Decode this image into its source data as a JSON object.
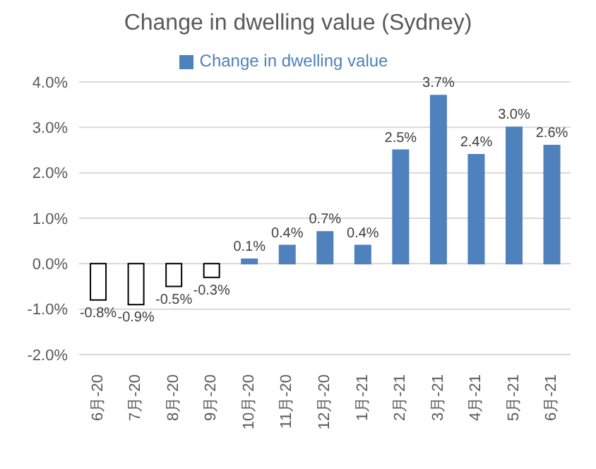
{
  "chart_data": {
    "type": "bar",
    "title": "Change in dwelling value (Sydney)",
    "categories": [
      "6月-20",
      "7月-20",
      "8月-20",
      "9月-20",
      "10月-20",
      "11月-20",
      "12月-20",
      "1月-21",
      "2月-21",
      "3月-21",
      "4月-21",
      "5月-21",
      "6月-21"
    ],
    "series": [
      {
        "name": "Change in dwelling value",
        "color": "#4f81bd",
        "colors": [
          "#ffffff",
          "#ffffff",
          "#ffffff",
          "#ffffff",
          "#4f81bd",
          "#4f81bd",
          "#4f81bd",
          "#4f81bd",
          "#4f81bd",
          "#4f81bd",
          "#4f81bd",
          "#4f81bd",
          "#4f81bd"
        ],
        "values": [
          -0.8,
          -0.9,
          -0.5,
          -0.3,
          0.1,
          0.4,
          0.7,
          0.4,
          2.5,
          3.7,
          2.4,
          3.0,
          2.6
        ],
        "value_labels": [
          "-0.8%",
          "-0.9%",
          "-0.5%",
          "-0.3%",
          "0.1%",
          "0.4%",
          "0.7%",
          "0.4%",
          "2.5%",
          "3.7%",
          "2.4%",
          "3.0%",
          "2.6%"
        ]
      }
    ],
    "ylim": [
      -2,
      4
    ],
    "yticks": [
      {
        "value": -2,
        "label": "-2.0%"
      },
      {
        "value": -1,
        "label": "-1.0%"
      },
      {
        "value": 0,
        "label": "0.0%"
      },
      {
        "value": 1,
        "label": "1.0%"
      },
      {
        "value": 2,
        "label": "2.0%"
      },
      {
        "value": 3,
        "label": "3.0%"
      },
      {
        "value": 4,
        "label": "4.0%"
      }
    ],
    "grid": "y",
    "legend": "top"
  }
}
